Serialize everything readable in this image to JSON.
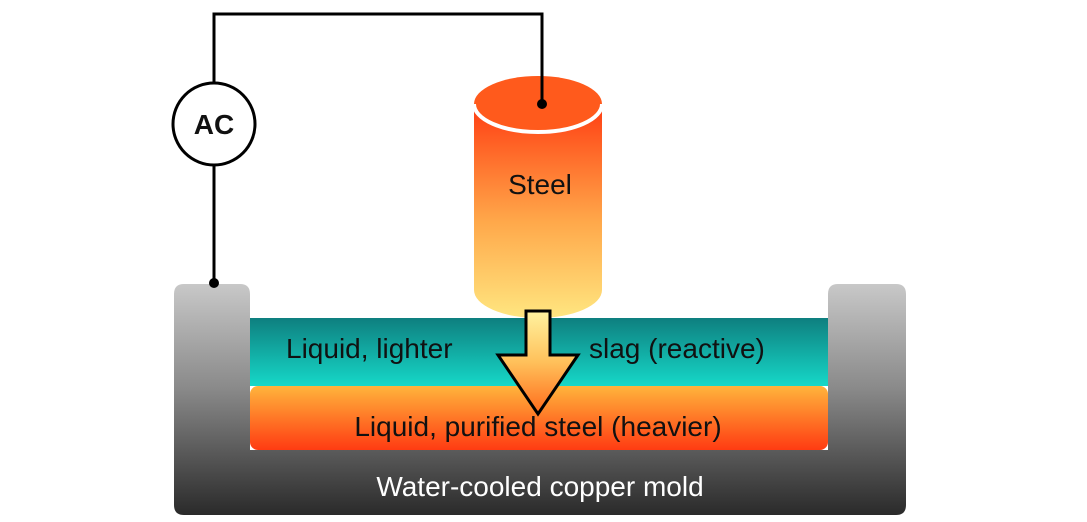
{
  "source": {
    "label": "AC"
  },
  "electrode": {
    "label": "Steel"
  },
  "slag_layer": {
    "label_left": "Liquid, lighter",
    "label_right": "slag (reactive)"
  },
  "steel_layer": {
    "label": "Liquid, purified steel (heavier)"
  },
  "mold": {
    "label": "Water-cooled copper mold"
  },
  "colors": {
    "electrode_top": "#ff3d12",
    "electrode_bottom": "#ffe680",
    "slag_top": "#0e7f7f",
    "slag_bottom": "#16d8c8",
    "steel_top": "#ffb43c",
    "steel_bottom": "#ff3b12",
    "mold_top": "#c8c8c8",
    "mold_bottom": "#2a2a2a",
    "arrow_top": "#fff3a0",
    "arrow_bottom": "#ff6a1a"
  }
}
